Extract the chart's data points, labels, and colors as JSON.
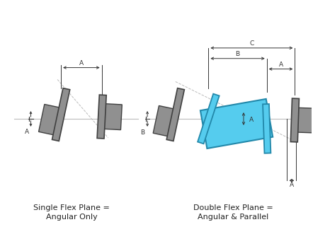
{
  "bg_color": "#ffffff",
  "gray_fill": "#909090",
  "gray_edge": "#404040",
  "cyan_fill": "#55ccee",
  "cyan_edge": "#2288aa",
  "dim_color": "#333333",
  "center_line_color": "#bbbbbb",
  "dash_line_color": "#bbbbbb",
  "label1_line1": "Single Flex Plane =",
  "label1_line2": "Angular Only",
  "label2_line1": "Double Flex Plane =",
  "label2_line2": "Angular & Parallel",
  "text_fontsize": 8.0
}
